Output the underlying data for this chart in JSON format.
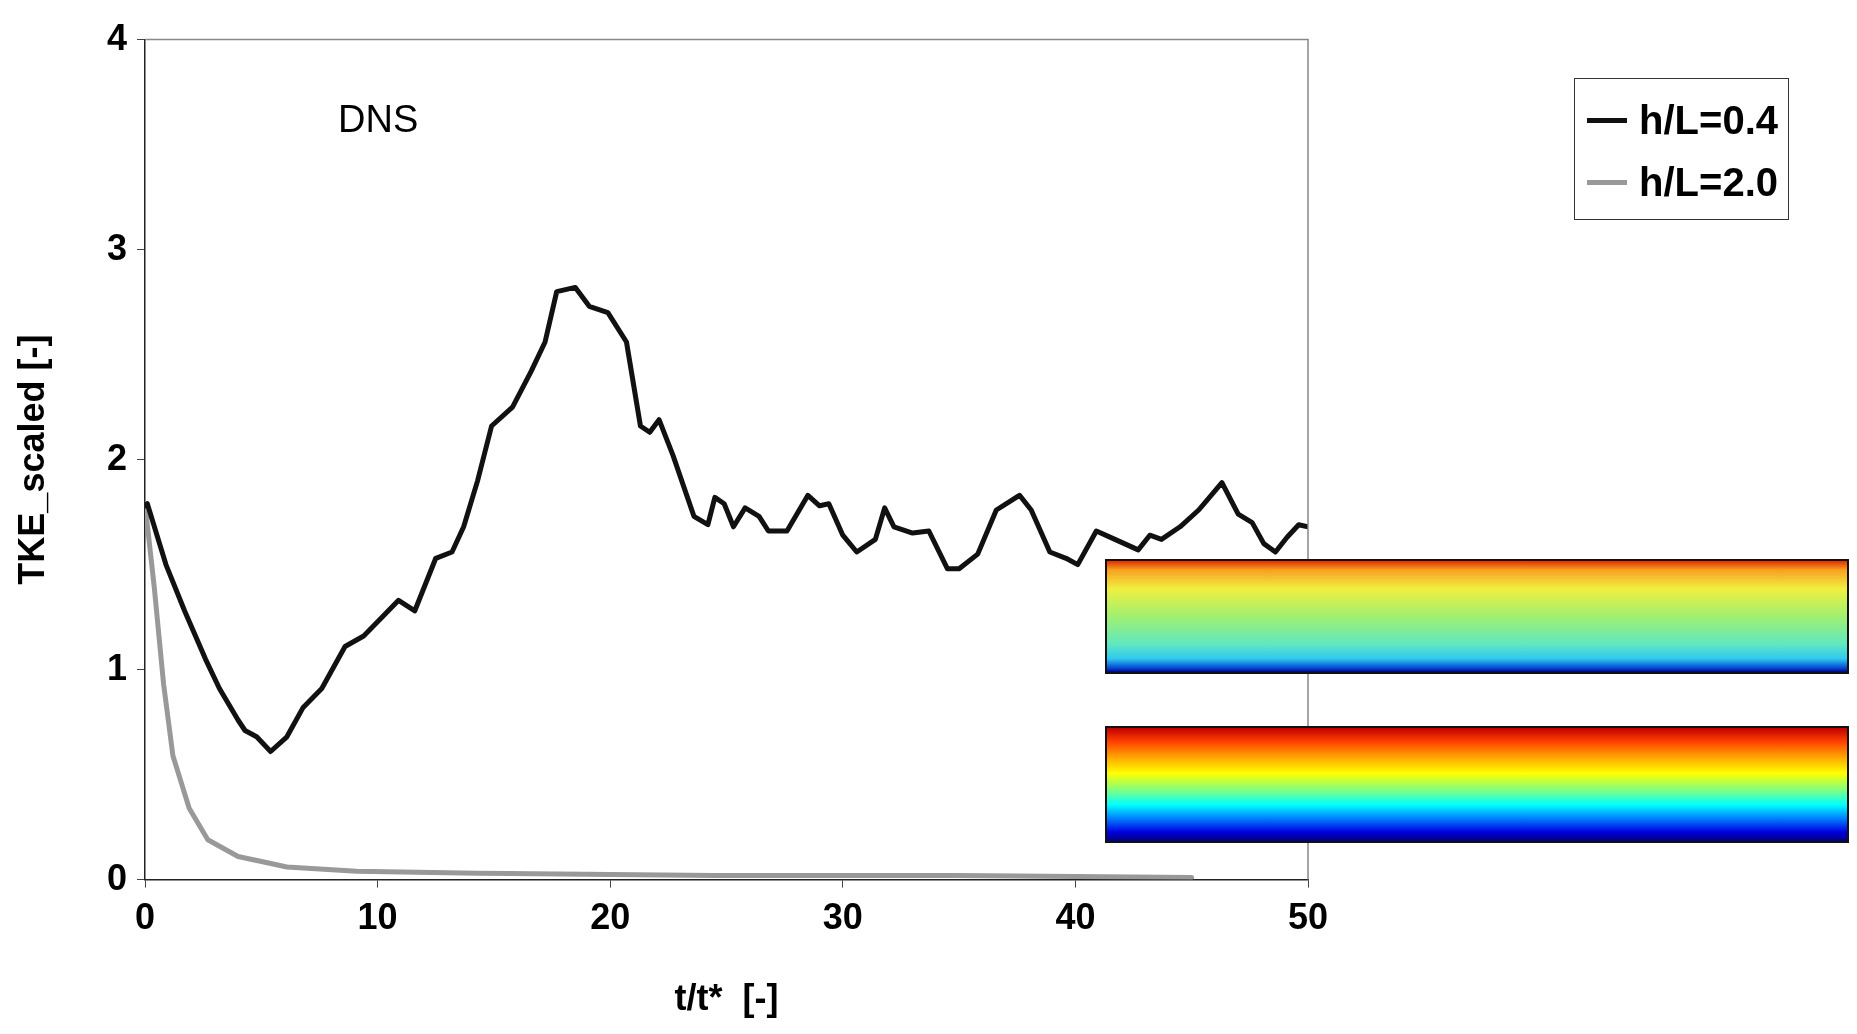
{
  "chart_data": {
    "type": "line",
    "xlabel": "t/t*  [-]",
    "ylabel": "TKE_scaled [-]",
    "xlim": [
      0,
      50
    ],
    "xticks": [
      0,
      10,
      20,
      30,
      40,
      50
    ],
    "ylim": [
      0,
      4
    ],
    "yticks": [
      0,
      1,
      2,
      3,
      4
    ],
    "grid": false,
    "legend": "top right",
    "marker": "none",
    "line_style": "solid",
    "annotations": [
      "DNS"
    ],
    "series": [
      {
        "name": "h/L=0.4",
        "color": "#111111",
        "x": [
          0,
          0.1,
          0.9,
          1.7,
          2.6,
          3.2,
          4.0,
          4.3,
          4.8,
          5.4,
          6.1,
          6.8,
          7.6,
          8.6,
          9.4,
          10.2,
          10.9,
          11.6,
          12.5,
          13.2,
          13.7,
          14.3,
          14.9,
          15.8,
          16.6,
          17.2,
          17.7,
          18.5,
          19.1,
          19.9,
          20.7,
          21.3,
          21.7,
          22.1,
          22.7,
          23.6,
          24.2,
          24.5,
          24.9,
          25.3,
          25.8,
          26.4,
          26.8,
          27.6,
          28.5,
          29.0,
          29.4,
          30.0,
          30.6,
          31.4,
          31.8,
          32.2,
          33.0,
          33.7,
          34.5,
          35.0,
          35.8,
          36.6,
          37.6,
          38.1,
          38.9,
          39.6,
          40.1,
          40.9,
          41.7,
          42.7,
          43.2,
          43.7,
          44.5,
          45.3,
          46.3,
          47.0,
          47.6,
          48.1,
          48.6,
          49.1,
          49.6,
          50
        ],
        "values": [
          1.78,
          1.79,
          1.5,
          1.28,
          1.05,
          0.91,
          0.76,
          0.71,
          0.68,
          0.61,
          0.68,
          0.82,
          0.91,
          1.11,
          1.16,
          1.25,
          1.33,
          1.28,
          1.53,
          1.56,
          1.68,
          1.9,
          2.16,
          2.25,
          2.42,
          2.56,
          2.8,
          2.82,
          2.73,
          2.7,
          2.56,
          2.16,
          2.13,
          2.19,
          2.02,
          1.73,
          1.69,
          1.82,
          1.79,
          1.68,
          1.77,
          1.73,
          1.66,
          1.66,
          1.83,
          1.78,
          1.79,
          1.64,
          1.56,
          1.62,
          1.77,
          1.68,
          1.65,
          1.66,
          1.48,
          1.48,
          1.55,
          1.76,
          1.83,
          1.76,
          1.56,
          1.53,
          1.5,
          1.66,
          1.62,
          1.57,
          1.64,
          1.62,
          1.68,
          1.76,
          1.89,
          1.74,
          1.7,
          1.6,
          1.56,
          1.63,
          1.69,
          1.68
        ]
      },
      {
        "name": "h/L=2.0",
        "color": "#999999",
        "x": [
          0,
          0.4,
          0.8,
          1.2,
          1.9,
          2.7,
          4.0,
          6.1,
          9.1,
          14.3,
          24.5,
          34.8,
          45.0
        ],
        "values": [
          1.79,
          1.39,
          0.93,
          0.59,
          0.34,
          0.19,
          0.11,
          0.06,
          0.04,
          0.03,
          0.02,
          0.02,
          0.01
        ]
      }
    ]
  }
}
